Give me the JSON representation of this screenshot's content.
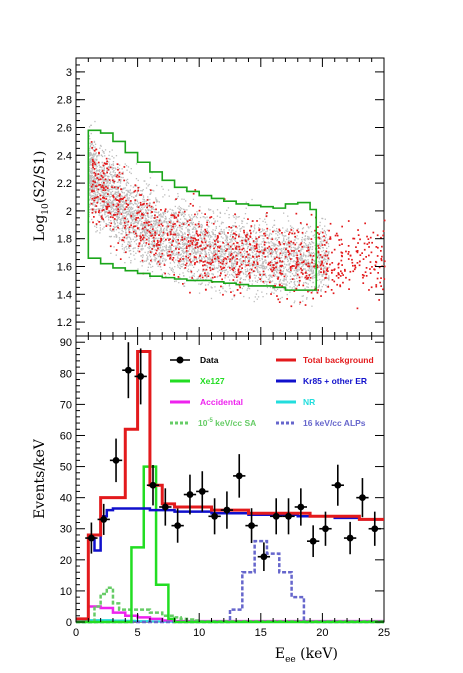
{
  "chart_data": [
    {
      "type": "scatter",
      "ylabel_base": "Log",
      "ylabel_sub": "10",
      "ylabel_rest": "(S2/S1)",
      "xlim": [
        0,
        25
      ],
      "ylim": [
        1.1,
        3.1
      ],
      "yticks": [
        "1.2",
        "1.4",
        "1.6",
        "1.8",
        "2",
        "2.2",
        "2.4",
        "2.6",
        "2.8",
        "3"
      ],
      "series": [
        {
          "color": "#bdbdbd",
          "kind": "calibration cloud"
        },
        {
          "color": "#e31a1c",
          "kind": "data points"
        }
      ],
      "region": {
        "color": "#1aa61a",
        "upper": [
          [
            1,
            2.58
          ],
          [
            2,
            2.56
          ],
          [
            3,
            2.5
          ],
          [
            4,
            2.42
          ],
          [
            5,
            2.35
          ],
          [
            6,
            2.28
          ],
          [
            7,
            2.22
          ],
          [
            8,
            2.17
          ],
          [
            9,
            2.14
          ],
          [
            10,
            2.11
          ],
          [
            11,
            2.09
          ],
          [
            12,
            2.07
          ],
          [
            13,
            2.05
          ],
          [
            14,
            2.04
          ],
          [
            15,
            2.03
          ],
          [
            16,
            2.02
          ],
          [
            17,
            2.05
          ],
          [
            18,
            2.06
          ],
          [
            19,
            2.01
          ],
          [
            19.5,
            2.01
          ]
        ],
        "lower": [
          [
            1,
            1.72
          ],
          [
            2,
            1.66
          ],
          [
            3,
            1.62
          ],
          [
            4,
            1.59
          ],
          [
            5,
            1.57
          ],
          [
            6,
            1.55
          ],
          [
            7,
            1.53
          ],
          [
            8,
            1.52
          ],
          [
            9,
            1.51
          ],
          [
            10,
            1.5
          ],
          [
            11,
            1.5
          ],
          [
            12,
            1.49
          ],
          [
            13,
            1.48
          ],
          [
            14,
            1.47
          ],
          [
            15,
            1.46
          ],
          [
            16,
            1.46
          ],
          [
            17,
            1.45
          ],
          [
            18,
            1.43
          ],
          [
            19,
            1.43
          ],
          [
            19.5,
            1.43
          ]
        ]
      }
    },
    {
      "type": "line",
      "xlabel_base": "E",
      "xlabel_sub": "ee",
      "xlabel_rest": " (keV)",
      "ylabel": "Events/keV",
      "xlim": [
        0,
        25
      ],
      "ylim": [
        0,
        92
      ],
      "xticks": [
        "0",
        "5",
        "10",
        "15",
        "20",
        "25"
      ],
      "yticks": [
        "0",
        "10",
        "20",
        "30",
        "40",
        "50",
        "60",
        "70",
        "80",
        "90"
      ],
      "legend": {
        "data": "Data",
        "total": "Total background",
        "xe127": "Xe127",
        "kr85": "Kr85 + other ER",
        "accidental": "Accidental",
        "nr": "NR",
        "sa_prefix": "10",
        "sa_sup": "-5",
        "sa_suffix": " keV/cc SA",
        "alps": "16 keV/cc ALPs"
      },
      "data_points": {
        "x": [
          1.25,
          2.25,
          3.25,
          4.25,
          5.25,
          6.25,
          7.25,
          8.25,
          9.25,
          10.25,
          11.25,
          12.25,
          13.25,
          14.25,
          15.25,
          16.25,
          17.25,
          18.25,
          19.25,
          20.25,
          21.25,
          22.25,
          23.25,
          24.25
        ],
        "y": [
          27,
          33,
          52,
          81,
          79,
          44,
          37,
          31,
          41,
          42,
          34,
          36,
          47,
          31,
          21,
          34,
          34,
          37,
          26,
          30,
          44,
          27,
          40,
          30
        ],
        "err": [
          5,
          5,
          7,
          9,
          9,
          6.5,
          6,
          5.5,
          6.4,
          6.5,
          5.8,
          6,
          7,
          5.6,
          4.6,
          5.8,
          5.8,
          6,
          5.1,
          5.5,
          6.6,
          5.2,
          6.3,
          5.5
        ]
      },
      "total": {
        "color": "#e31a1c",
        "edges": [
          0,
          0.5,
          1,
          1.5,
          2,
          2.5,
          3,
          3.5,
          4,
          4.5,
          5,
          5.5,
          6,
          6.5,
          7,
          7.5,
          8,
          8.5,
          9,
          9.5,
          10,
          10.5,
          11,
          11.5,
          12,
          12.5,
          13,
          13.5,
          14,
          14.5,
          15,
          15.5,
          16,
          16.5,
          17,
          17.5,
          18,
          18.5,
          19,
          19.5,
          20,
          20.5,
          21,
          21.5,
          22,
          22.5,
          23,
          23.5,
          24,
          24.5,
          25
        ],
        "values": [
          1,
          1,
          28,
          28,
          40,
          40,
          40,
          40,
          62,
          62,
          87,
          87,
          44,
          44,
          38,
          38,
          37,
          37,
          37,
          37,
          37,
          37,
          36,
          36,
          36,
          36,
          36,
          36,
          35,
          35,
          35,
          35,
          35,
          35,
          35,
          35,
          35,
          35,
          34,
          34,
          34,
          34,
          34,
          34,
          34,
          34,
          33,
          33,
          33,
          33
        ]
      },
      "xe127": {
        "color": "#22dd22",
        "edges": [
          0,
          2,
          2.5,
          3,
          3.5,
          4,
          4.5,
          5,
          5.5,
          6,
          6.5,
          7,
          7.5,
          8,
          25
        ],
        "values": [
          0,
          0,
          0,
          0,
          0,
          0,
          24,
          24,
          50,
          50,
          12,
          12,
          1,
          0
        ]
      },
      "kr85": {
        "color": "#1010cc",
        "edges": [
          1,
          1.5,
          2,
          2.5,
          3,
          4,
          5,
          6,
          7,
          8,
          9,
          10,
          11,
          12,
          13,
          14,
          15,
          16,
          17,
          18,
          19,
          20,
          21,
          22,
          23,
          24,
          25
        ],
        "values": [
          27,
          23,
          34,
          36,
          36.5,
          36.5,
          36.5,
          36,
          36,
          35.5,
          35.5,
          35.5,
          35,
          35,
          35,
          34.5,
          34.5,
          34.5,
          34.5,
          34,
          34,
          34,
          33.5,
          33.5,
          33,
          33
        ]
      },
      "accidental": {
        "color": "#ee22ee",
        "edges": [
          0,
          0.5,
          1,
          1.5,
          2,
          2.5,
          3,
          3.5,
          4,
          4.5,
          5,
          5.5,
          6,
          6.5,
          7,
          7.5,
          8,
          25
        ],
        "values": [
          1,
          1,
          5,
          5,
          4.5,
          4.5,
          3,
          3,
          2,
          2,
          1.5,
          1.5,
          1,
          1,
          0.5,
          0.5,
          0.3
        ]
      },
      "nr": {
        "color": "#22dddd",
        "edges": [
          0,
          1,
          2,
          3,
          4,
          5,
          6,
          7,
          8,
          25
        ],
        "values": [
          0.5,
          0.6,
          0.6,
          0.5,
          0.4,
          0.3,
          0.2,
          0.1,
          0.05
        ]
      },
      "sa": {
        "color": "#66cc66",
        "edges": [
          0,
          0.5,
          1,
          1.5,
          2,
          2.5,
          3,
          3.5,
          4,
          4.5,
          5,
          5.5,
          6,
          6.5,
          7,
          7.5,
          8,
          8.5,
          9,
          9.5,
          10,
          25
        ],
        "values": [
          0,
          0,
          0,
          5,
          9,
          11,
          6,
          4,
          4,
          4,
          4,
          4,
          3,
          3,
          2,
          2,
          1.5,
          1,
          0.8,
          0.5,
          0.2
        ]
      },
      "alps": {
        "color": "#6666cc",
        "edges": [
          0,
          12,
          12.5,
          13,
          13.5,
          14,
          14.5,
          15,
          15.5,
          16,
          16.5,
          17,
          17.5,
          18,
          18.5,
          19,
          19.5,
          25
        ],
        "values": [
          0,
          0,
          4,
          4,
          16,
          16,
          26,
          26,
          22,
          22,
          16,
          16,
          8,
          8,
          0,
          0,
          0
        ]
      }
    }
  ]
}
